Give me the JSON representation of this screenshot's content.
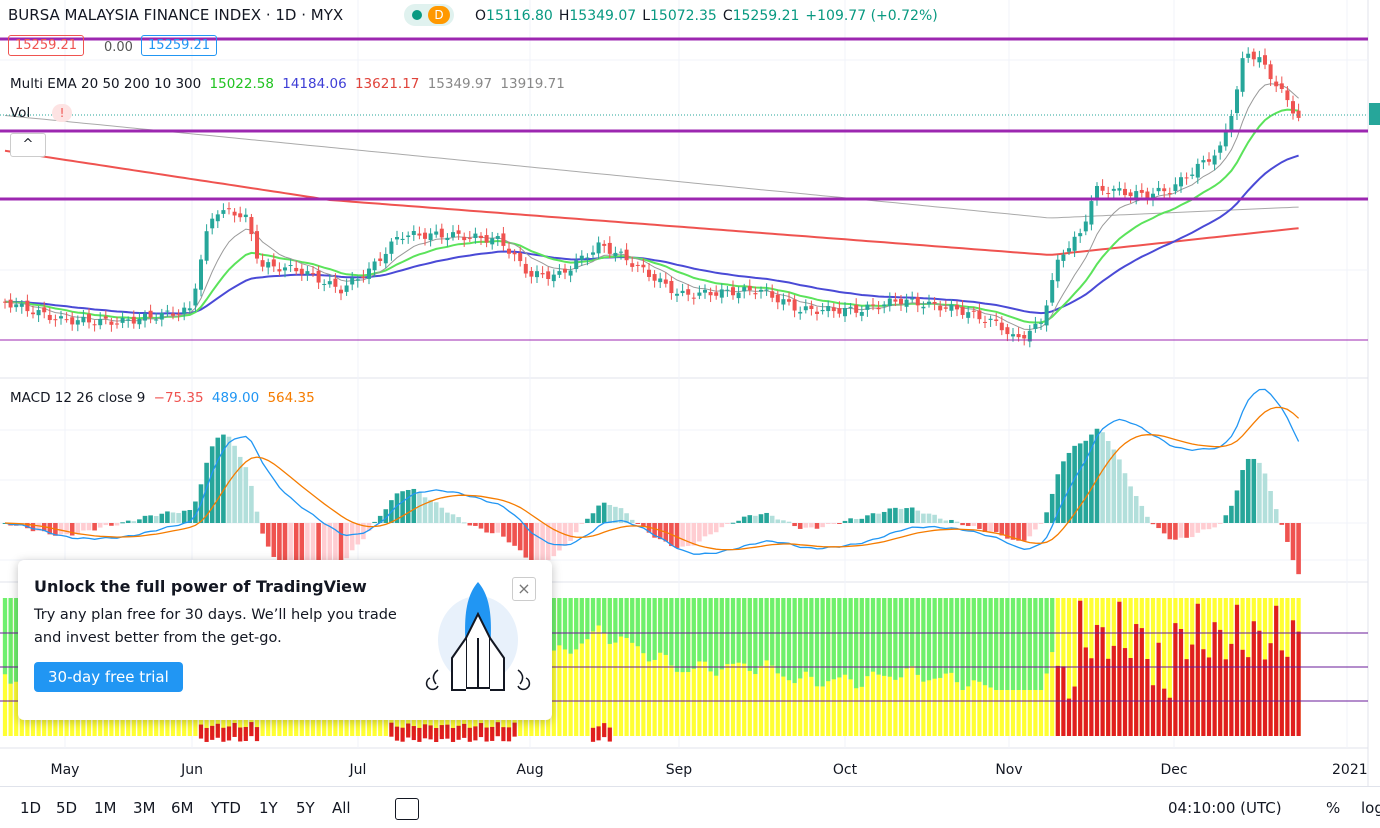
{
  "header": {
    "symbol": "BURSA MALAYSIA FINANCE INDEX · 1D · MYX",
    "status": "D",
    "ohlc": [
      {
        "label": "O",
        "value": "15116.80"
      },
      {
        "label": "H",
        "value": "15349.07"
      },
      {
        "label": "L",
        "value": "15072.35"
      },
      {
        "label": "C",
        "value": "15259.21"
      }
    ],
    "change": "+109.77 (+0.72%)"
  },
  "badges": [
    "15259.21",
    "0.00",
    "15259.21"
  ],
  "indicators": {
    "ema": {
      "name": "Multi EMA 20 50 200 10 300",
      "values": [
        "15022.58",
        "14184.06",
        "13621.17",
        "15349.97",
        "13919.71"
      ]
    },
    "vol": {
      "name": "Vol",
      "alert": "!"
    },
    "macd": {
      "name": "MACD 12 26 close 9",
      "values": [
        "−75.35",
        "489.00",
        "564.35"
      ]
    }
  },
  "time_axis": [
    "May",
    "Jun",
    "Jul",
    "Aug",
    "Sep",
    "Oct",
    "Nov",
    "Dec",
    "2021"
  ],
  "promo": {
    "title": "Unlock the full power of TradingView",
    "text_line1": "Try any plan free for 30 days. We’ll help you trade",
    "text_line2": "and invest better from the get-go.",
    "button": "30-day free trial"
  },
  "toolbar": {
    "ranges": [
      "1D",
      "5D",
      "1M",
      "3M",
      "6M",
      "YTD",
      "1Y",
      "5Y",
      "All"
    ],
    "clock": "04:10:00 (UTC)",
    "percent": "%",
    "log": "log"
  }
}
